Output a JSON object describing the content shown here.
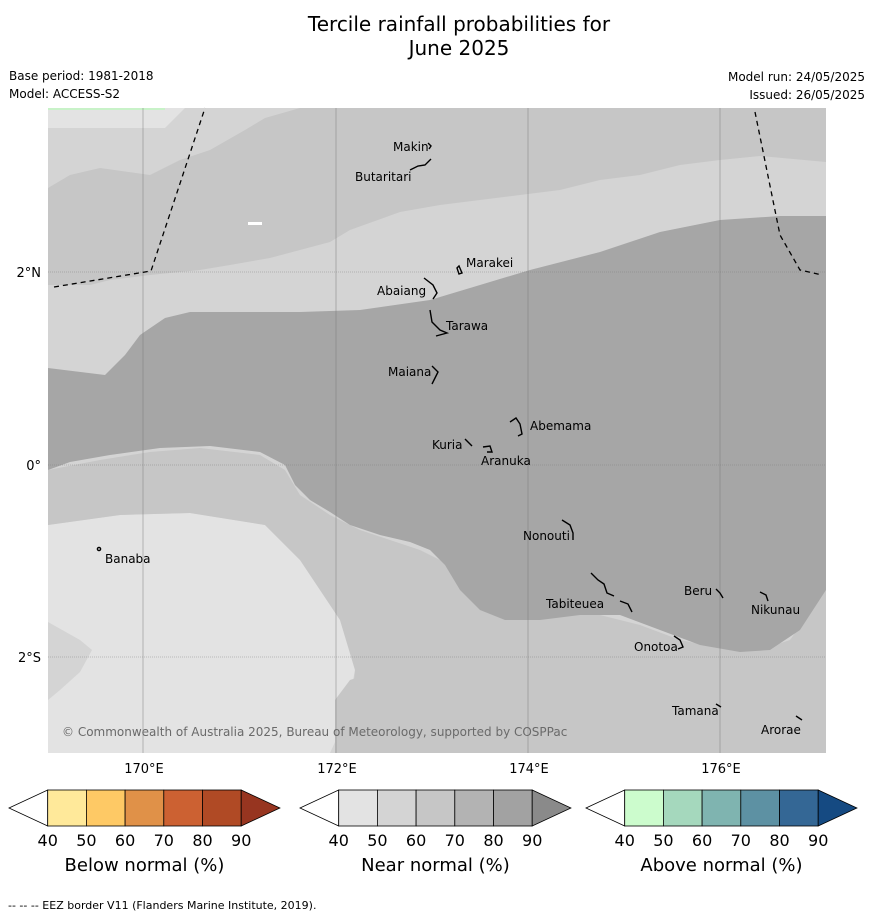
{
  "title_line1": "Tercile rainfall probabilities for",
  "title_line2": "June 2025",
  "base_period": "Base period: 1981-2018",
  "model": "Model: ACCESS-S2",
  "model_run": "Model run: 24/05/2025",
  "issued": "Issued: 26/05/2025",
  "copyright": "© Commonwealth of Australia 2025, Bureau of Meteorology, supported by COSPPac",
  "axes": {
    "lat_labels": [
      "2°N",
      "0°",
      "2°S"
    ],
    "lon_labels": [
      "170°E",
      "172°E",
      "174°E",
      "176°E"
    ]
  },
  "places": {
    "makin": "Makin",
    "butaritari": "Butaritari",
    "marakei": "Marakei",
    "abaiang": "Abaiang",
    "tarawa": "Tarawa",
    "maiana": "Maiana",
    "abemama": "Abemama",
    "kuria": "Kuria",
    "aranuka": "Aranuka",
    "banaba": "Banaba",
    "nonouti": "Nonouti",
    "beru": "Beru",
    "nikunau": "Nikunau",
    "tabiteuea": "Tabiteuea",
    "onotoa": "Onotoa",
    "tamana": "Tamana",
    "arorae": "Arorae"
  },
  "legends": {
    "below": {
      "title": "Below normal (%)",
      "ticks": [
        "40",
        "50",
        "60",
        "70",
        "80",
        "90"
      ],
      "colors": [
        "#ffffff",
        "#ffe99a",
        "#fec965",
        "#e09148",
        "#cc6132",
        "#b04a25",
        "#973520"
      ]
    },
    "near": {
      "title": "Near normal (%)",
      "ticks": [
        "40",
        "50",
        "60",
        "70",
        "80",
        "90"
      ],
      "colors": [
        "#ffffff",
        "#e3e3e3",
        "#d4d4d4",
        "#c6c6c6",
        "#b3b3b3",
        "#a2a2a2",
        "#8a8a8a"
      ]
    },
    "above": {
      "title": "Above normal (%)",
      "ticks": [
        "40",
        "50",
        "60",
        "70",
        "80",
        "90"
      ],
      "colors": [
        "#ffffff",
        "#ccfccd",
        "#a5d8bd",
        "#7fb4b0",
        "#5d91a3",
        "#346795",
        "#154a82"
      ]
    }
  },
  "footer": "-- -- -- EEZ border V11 (Flanders Marine Institute, 2019)."
}
